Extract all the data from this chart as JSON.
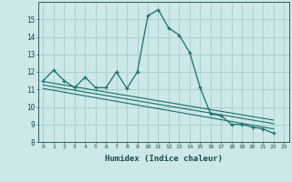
{
  "xlabel": "Humidex (Indice chaleur)",
  "background_color": "#cce8e8",
  "grid_color": "#aad0d0",
  "line_color": "#1a6e6a",
  "xlim": [
    -0.5,
    23.5
  ],
  "ylim": [
    8,
    16
  ],
  "yticks": [
    8,
    9,
    10,
    11,
    12,
    13,
    14,
    15
  ],
  "xticks": [
    0,
    1,
    2,
    3,
    4,
    5,
    6,
    7,
    8,
    9,
    10,
    11,
    12,
    13,
    14,
    15,
    16,
    17,
    18,
    19,
    20,
    21,
    22,
    23
  ],
  "main_series_x": [
    0,
    1,
    2,
    3,
    4,
    5,
    6,
    7,
    8,
    9,
    10,
    11,
    12,
    13,
    14,
    15,
    16,
    17,
    18,
    19,
    20,
    21,
    22
  ],
  "main_series_y": [
    11.5,
    12.1,
    11.5,
    11.1,
    11.7,
    11.1,
    11.1,
    12.0,
    11.05,
    12.0,
    15.2,
    15.55,
    14.5,
    14.1,
    13.1,
    11.1,
    9.6,
    9.5,
    9.0,
    9.0,
    8.85,
    8.75,
    8.5
  ],
  "line1_x": [
    0,
    22
  ],
  "line1_y": [
    11.45,
    9.25
  ],
  "line2_x": [
    0,
    22
  ],
  "line2_y": [
    11.25,
    9.05
  ],
  "line3_x": [
    0,
    22
  ],
  "line3_y": [
    11.05,
    8.75
  ]
}
